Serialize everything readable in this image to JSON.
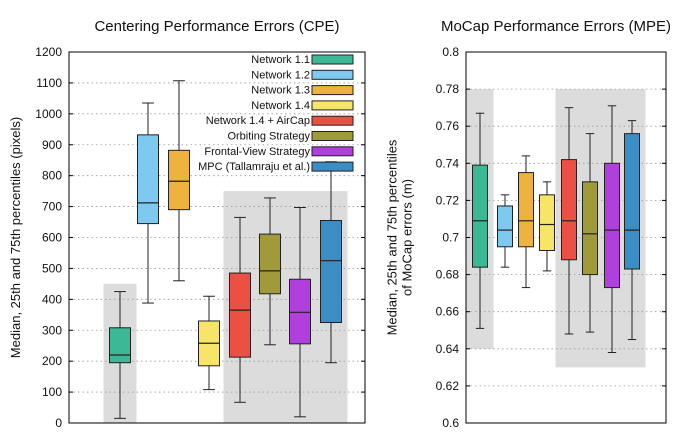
{
  "chart_data": [
    {
      "type": "box",
      "title": "Centering Performance Errors (CPE)",
      "ylabel": "Median, 25th and 75th percentiles (pixels)",
      "ylim": [
        0,
        1200
      ],
      "yticks": [
        0,
        100,
        200,
        300,
        400,
        500,
        600,
        700,
        800,
        900,
        1000,
        1100,
        1200
      ],
      "grid": "horizontal dotted",
      "legend_position": "top-right",
      "shaded_groups": [
        {
          "from_box": 1,
          "to_box": 1,
          "y_max": 450
        },
        {
          "from_box": 5,
          "to_box": 8,
          "y_max": 750
        }
      ],
      "series": [
        {
          "name": "Network 1.1",
          "color": "#3cb896",
          "whisker_low": 15,
          "q1": 195,
          "median": 220,
          "q3": 308,
          "whisker_high": 425
        },
        {
          "name": "Network 1.2",
          "color": "#7ec9ef",
          "whisker_low": 388,
          "q1": 645,
          "median": 712,
          "q3": 932,
          "whisker_high": 1035
        },
        {
          "name": "Network 1.3",
          "color": "#eeb33f",
          "whisker_low": 460,
          "q1": 690,
          "median": 782,
          "q3": 882,
          "whisker_high": 1107
        },
        {
          "name": "Network 1.4",
          "color": "#f7e56a",
          "whisker_low": 108,
          "q1": 185,
          "median": 258,
          "q3": 330,
          "whisker_high": 410
        },
        {
          "name": "Network 1.4 + AirCap",
          "color": "#ec4f43",
          "whisker_low": 67,
          "q1": 213,
          "median": 365,
          "q3": 485,
          "whisker_high": 665
        },
        {
          "name": "Orbiting Strategy",
          "color": "#a19a3a",
          "whisker_low": 253,
          "q1": 418,
          "median": 492,
          "q3": 611,
          "whisker_high": 728
        },
        {
          "name": "Frontal-View Strategy",
          "color": "#b13fde",
          "whisker_low": 20,
          "q1": 256,
          "median": 358,
          "q3": 465,
          "whisker_high": 697
        },
        {
          "name": "MPC (Tallamraju et al.)",
          "color": "#3c8dc4",
          "whisker_low": 195,
          "q1": 325,
          "median": 525,
          "q3": 655,
          "whisker_high": 845
        }
      ]
    },
    {
      "type": "box",
      "title": "MoCap Performance Errors (MPE)",
      "ylabel": "Median, 25th and 75th percentiles\nof MoCap errors (m)",
      "ylim": [
        0.6,
        0.8
      ],
      "yticks": [
        "0.6",
        "0.62",
        "0.64",
        "0.66",
        "0.68",
        "0.7",
        "0.72",
        "0.74",
        "0.76",
        "0.78",
        "0.8"
      ],
      "grid": "horizontal dotted",
      "shaded_groups": [
        {
          "from_box": 1,
          "to_box": 1,
          "y_min": 0.64,
          "y_max": 0.78
        },
        {
          "from_box": 5,
          "to_box": 8,
          "y_min": 0.63,
          "y_max": 0.78
        }
      ],
      "series": [
        {
          "name": "Network 1.1",
          "color": "#3cb896",
          "whisker_low": 0.651,
          "q1": 0.684,
          "median": 0.709,
          "q3": 0.739,
          "whisker_high": 0.767
        },
        {
          "name": "Network 1.2",
          "color": "#7ec9ef",
          "whisker_low": 0.684,
          "q1": 0.695,
          "median": 0.704,
          "q3": 0.717,
          "whisker_high": 0.723
        },
        {
          "name": "Network 1.3",
          "color": "#eeb33f",
          "whisker_low": 0.673,
          "q1": 0.695,
          "median": 0.709,
          "q3": 0.735,
          "whisker_high": 0.744
        },
        {
          "name": "Network 1.4",
          "color": "#f7e56a",
          "whisker_low": 0.682,
          "q1": 0.693,
          "median": 0.707,
          "q3": 0.723,
          "whisker_high": 0.73
        },
        {
          "name": "Network 1.4 + AirCap",
          "color": "#ec4f43",
          "whisker_low": 0.648,
          "q1": 0.688,
          "median": 0.709,
          "q3": 0.742,
          "whisker_high": 0.77
        },
        {
          "name": "Orbiting Strategy",
          "color": "#a19a3a",
          "whisker_low": 0.649,
          "q1": 0.68,
          "median": 0.702,
          "q3": 0.73,
          "whisker_high": 0.756
        },
        {
          "name": "Frontal-View Strategy",
          "color": "#b13fde",
          "whisker_low": 0.638,
          "q1": 0.673,
          "median": 0.704,
          "q3": 0.74,
          "whisker_high": 0.771
        },
        {
          "name": "MPC (Tallamraju et al.)",
          "color": "#3c8dc4",
          "whisker_low": 0.645,
          "q1": 0.683,
          "median": 0.704,
          "q3": 0.756,
          "whisker_high": 0.763
        }
      ]
    }
  ]
}
